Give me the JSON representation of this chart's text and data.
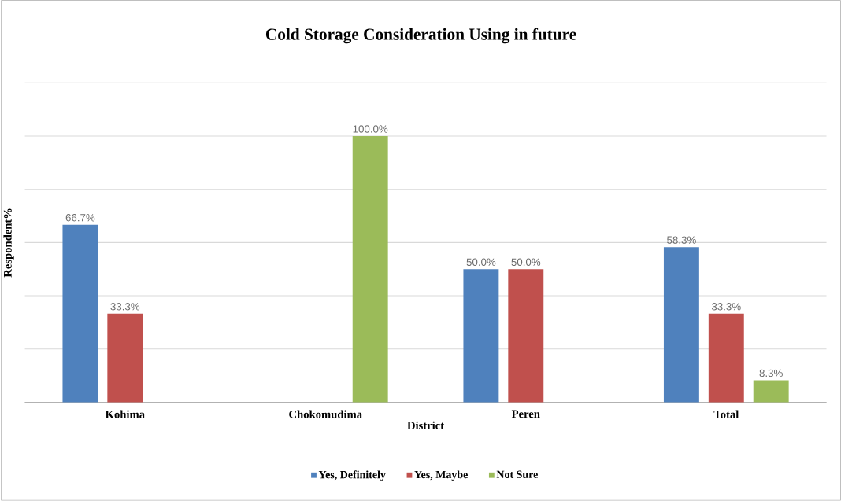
{
  "chart_data": {
    "type": "bar",
    "title": "Cold Storage Consideration Using in future",
    "xlabel": "District",
    "ylabel": "Respondent%",
    "categories": [
      "Kohima",
      "Chokomudima",
      "Peren",
      "Total"
    ],
    "series": [
      {
        "name": "Yes, Definitely",
        "color": "#4f81bd",
        "values": [
          66.7,
          null,
          50.0,
          58.3
        ],
        "value_labels": [
          "66.7%",
          null,
          "50.0%",
          "58.3%"
        ]
      },
      {
        "name": "Yes, Maybe",
        "color": "#c0504d",
        "values": [
          33.3,
          null,
          50.0,
          33.3
        ],
        "value_labels": [
          "33.3%",
          null,
          "50.0%",
          "33.3%"
        ]
      },
      {
        "name": "Not Sure",
        "color": "#9bbb59",
        "values": [
          null,
          100.0,
          null,
          8.3
        ],
        "value_labels": [
          null,
          "100.0%",
          null,
          "8.3%"
        ]
      }
    ],
    "ylim": [
      0,
      120
    ],
    "yticks": [
      {
        "value": 0,
        "label": null
      },
      {
        "value": 20,
        "label": null
      },
      {
        "value": 40,
        "label": null
      },
      {
        "value": 60,
        "label": null
      },
      {
        "value": 80,
        "label": null
      },
      {
        "value": 100,
        "label": null
      },
      {
        "value": 120,
        "label": null
      }
    ],
    "grid": "y",
    "legend": "bottom",
    "tick_labels": "x"
  }
}
